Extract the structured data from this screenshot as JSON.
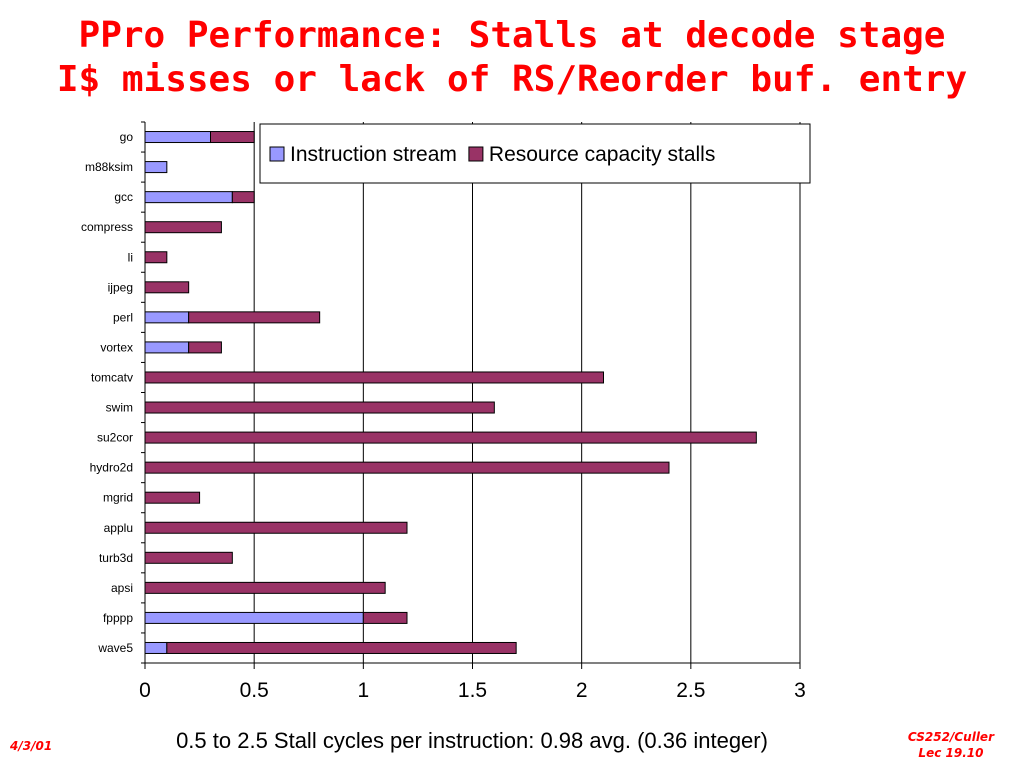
{
  "slide": {
    "title_line1": "PPro Performance: Stalls at decode stage",
    "title_line2": "I$ misses or lack of RS/Reorder buf. entry",
    "caption": "0.5 to 2.5 Stall cycles per instruction: 0.98 avg. (0.36 integer)",
    "footer_left": "4/3/01",
    "footer_right_line1": "CS252/Culler",
    "footer_right_line2": "Lec 19.10"
  },
  "colors": {
    "title": "#ff0000",
    "instruction_stream": "#9999ff",
    "resource_capacity": "#993366",
    "gridline": "#000000"
  },
  "chart_data": {
    "type": "bar",
    "orientation": "horizontal",
    "stacked": true,
    "categories": [
      "go",
      "m88ksim",
      "gcc",
      "compress",
      "li",
      "ijpeg",
      "perl",
      "vortex",
      "tomcatv",
      "swim",
      "su2cor",
      "hydro2d",
      "mgrid",
      "applu",
      "turb3d",
      "apsi",
      "fpppp",
      "wave5"
    ],
    "series": [
      {
        "name": "Instruction stream",
        "color": "#9999ff",
        "values": [
          0.3,
          0.1,
          0.4,
          0,
          0,
          0,
          0.2,
          0.2,
          0,
          0,
          0,
          0,
          0,
          0,
          0,
          0,
          1.0,
          0.1
        ]
      },
      {
        "name": "Resource capacity stalls",
        "color": "#993366",
        "values": [
          0.2,
          0,
          0.1,
          0.35,
          0.1,
          0.2,
          0.6,
          0.15,
          2.1,
          1.6,
          2.8,
          2.4,
          0.25,
          1.2,
          0.4,
          1.1,
          0.2,
          1.6
        ]
      }
    ],
    "xlim": [
      0,
      3
    ],
    "xticks": [
      "0",
      "0.5",
      "1",
      "1.5",
      "2",
      "2.5",
      "3"
    ],
    "grid": true,
    "legend": "top-right",
    "title": "",
    "xlabel": "",
    "ylabel": ""
  }
}
